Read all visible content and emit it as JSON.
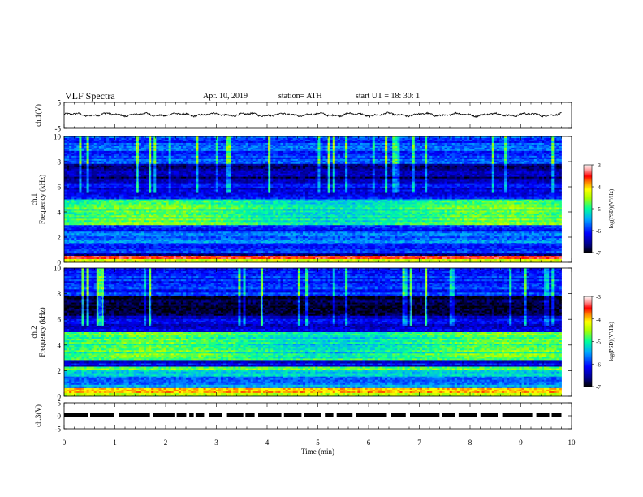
{
  "header": {
    "title": "VLF  Spectra",
    "date": "Apr. 10, 2019",
    "station": "station= ATH",
    "start": "start  UT  =    18: 30: 1"
  },
  "chart_data": [
    {
      "id": "ch1-waveform",
      "type": "line",
      "ylabel": "ch.1(V)",
      "ylim": [
        -5,
        5
      ],
      "yticks": [
        "5",
        "-5"
      ],
      "xlim": [
        0,
        10
      ],
      "data_end_min": 9.8,
      "series": [
        {
          "color": "#000000",
          "baseline": 0.3,
          "amplitude": 0.8
        }
      ]
    },
    {
      "id": "ch1-spectrogram",
      "type": "heatmap",
      "ylabel": "ch.1\nFrequency  (kHz)",
      "ylim": [
        0,
        10
      ],
      "yticks": [
        "0",
        "2",
        "4",
        "6",
        "8",
        "10"
      ],
      "xlim": [
        0,
        10
      ],
      "data_end_min": 9.8,
      "colorbar": {
        "label": "log(PSD)(V²/Hz)",
        "range": [
          -7,
          -3
        ],
        "ticks": [
          "-3",
          "-4",
          "-5",
          "-6",
          "-7"
        ]
      },
      "bands": [
        {
          "f0": 0.0,
          "f1": 0.3,
          "level": -4.2
        },
        {
          "f0": 0.3,
          "f1": 0.5,
          "level": -3.3
        },
        {
          "f0": 0.5,
          "f1": 0.8,
          "level": -6.5
        },
        {
          "f0": 0.8,
          "f1": 1.5,
          "level": -6.0
        },
        {
          "f0": 1.5,
          "f1": 2.5,
          "level": -5.7
        },
        {
          "f0": 2.5,
          "f1": 3.0,
          "level": -6.1
        },
        {
          "f0": 3.0,
          "f1": 5.0,
          "level": -5.0
        },
        {
          "f0": 5.0,
          "f1": 6.6,
          "level": -6.2
        },
        {
          "f0": 6.6,
          "f1": 7.8,
          "level": -6.6
        },
        {
          "f0": 7.8,
          "f1": 10.0,
          "level": -5.9
        }
      ]
    },
    {
      "id": "ch2-spectrogram",
      "type": "heatmap",
      "ylabel": "ch.2\nFrequency  (kHz)",
      "ylim": [
        0,
        10
      ],
      "yticks": [
        "0",
        "2",
        "4",
        "6",
        "8",
        "10"
      ],
      "xlim": [
        0,
        10
      ],
      "data_end_min": 9.8,
      "colorbar": {
        "label": "log(PSD)(V²/Hz)",
        "range": [
          -7,
          -3
        ],
        "ticks": [
          "-3",
          "-4",
          "-5",
          "-6",
          "-7"
        ]
      },
      "bands": [
        {
          "f0": 0.0,
          "f1": 0.3,
          "level": -4.3
        },
        {
          "f0": 0.3,
          "f1": 0.6,
          "level": -3.8
        },
        {
          "f0": 0.6,
          "f1": 1.5,
          "level": -5.6
        },
        {
          "f0": 1.5,
          "f1": 2.0,
          "level": -5.4
        },
        {
          "f0": 2.0,
          "f1": 2.3,
          "level": -4.8
        },
        {
          "f0": 2.3,
          "f1": 2.8,
          "level": -6.2
        },
        {
          "f0": 2.8,
          "f1": 5.0,
          "level": -5.0
        },
        {
          "f0": 5.0,
          "f1": 6.3,
          "level": -6.3
        },
        {
          "f0": 6.3,
          "f1": 7.8,
          "level": -6.8
        },
        {
          "f0": 7.8,
          "f1": 10.0,
          "level": -6.0
        }
      ]
    },
    {
      "id": "ch3-digital",
      "type": "line",
      "ylabel": "ch.3(V)",
      "ylim": [
        -5,
        5
      ],
      "yticks": [
        "5",
        "0",
        "-5"
      ],
      "xlim": [
        0,
        10
      ],
      "xlabel": "Time  (min)",
      "xticks": [
        "0",
        "1",
        "2",
        "3",
        "4",
        "5",
        "6",
        "7",
        "8",
        "9",
        "10"
      ],
      "data_end_min": 9.8,
      "series": [
        {
          "color": "#000000",
          "level": 0.3
        }
      ]
    }
  ]
}
